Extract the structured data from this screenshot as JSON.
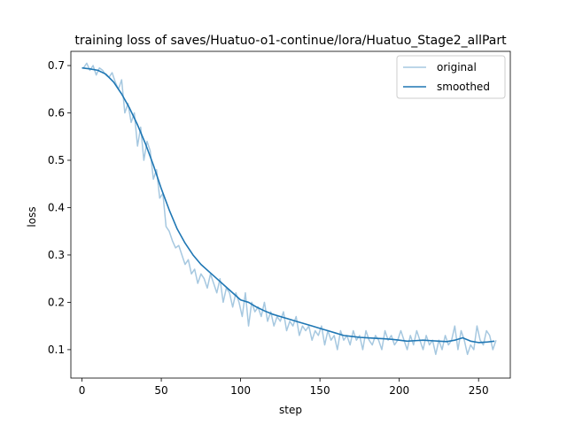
{
  "chart_data": {
    "type": "line",
    "title": "training loss of saves/Huatuo-o1-continue/lora/Huatuo_Stage2_allPart",
    "xlabel": "step",
    "ylabel": "loss",
    "xlim": [
      -7,
      270
    ],
    "ylim": [
      0.04,
      0.73
    ],
    "xticks": [
      0,
      50,
      100,
      150,
      200,
      250
    ],
    "yticks": [
      0.1,
      0.2,
      0.3,
      0.4,
      0.5,
      0.6,
      0.7
    ],
    "legend_position": "top-right",
    "series": [
      {
        "name": "original",
        "color": "#a6c8e0",
        "x": [
          1,
          3,
          5,
          7,
          9,
          11,
          13,
          15,
          17,
          19,
          21,
          23,
          25,
          27,
          29,
          31,
          33,
          35,
          37,
          39,
          41,
          43,
          45,
          47,
          49,
          51,
          53,
          55,
          57,
          59,
          61,
          63,
          65,
          67,
          69,
          71,
          73,
          75,
          77,
          79,
          81,
          83,
          85,
          87,
          89,
          91,
          93,
          95,
          97,
          99,
          101,
          103,
          105,
          107,
          109,
          111,
          113,
          115,
          117,
          119,
          121,
          123,
          125,
          127,
          129,
          131,
          133,
          135,
          137,
          139,
          141,
          143,
          145,
          147,
          149,
          151,
          153,
          155,
          157,
          159,
          161,
          163,
          165,
          167,
          169,
          171,
          173,
          175,
          177,
          179,
          181,
          183,
          185,
          187,
          189,
          191,
          193,
          195,
          197,
          199,
          201,
          203,
          205,
          207,
          209,
          211,
          213,
          215,
          217,
          219,
          221,
          223,
          225,
          227,
          229,
          231,
          233,
          235,
          237,
          239,
          241,
          243,
          245,
          247,
          249,
          251,
          253,
          255,
          257,
          259,
          261
        ],
        "y": [
          0.695,
          0.705,
          0.69,
          0.7,
          0.68,
          0.695,
          0.69,
          0.68,
          0.675,
          0.685,
          0.665,
          0.65,
          0.67,
          0.6,
          0.62,
          0.58,
          0.6,
          0.53,
          0.57,
          0.5,
          0.54,
          0.52,
          0.46,
          0.48,
          0.42,
          0.43,
          0.36,
          0.35,
          0.33,
          0.315,
          0.32,
          0.3,
          0.28,
          0.29,
          0.26,
          0.27,
          0.24,
          0.26,
          0.25,
          0.23,
          0.26,
          0.24,
          0.22,
          0.25,
          0.2,
          0.23,
          0.22,
          0.19,
          0.22,
          0.2,
          0.17,
          0.22,
          0.15,
          0.2,
          0.18,
          0.19,
          0.17,
          0.2,
          0.16,
          0.18,
          0.15,
          0.17,
          0.16,
          0.18,
          0.14,
          0.16,
          0.15,
          0.17,
          0.13,
          0.15,
          0.14,
          0.15,
          0.12,
          0.14,
          0.13,
          0.15,
          0.11,
          0.14,
          0.12,
          0.13,
          0.1,
          0.14,
          0.12,
          0.13,
          0.11,
          0.14,
          0.12,
          0.13,
          0.1,
          0.14,
          0.12,
          0.11,
          0.13,
          0.12,
          0.1,
          0.14,
          0.12,
          0.13,
          0.11,
          0.12,
          0.14,
          0.12,
          0.1,
          0.13,
          0.11,
          0.14,
          0.12,
          0.1,
          0.13,
          0.11,
          0.12,
          0.09,
          0.12,
          0.1,
          0.13,
          0.11,
          0.12,
          0.15,
          0.1,
          0.14,
          0.12,
          0.09,
          0.11,
          0.1,
          0.15,
          0.12,
          0.11,
          0.14,
          0.13,
          0.1,
          0.12
        ]
      },
      {
        "name": "smoothed",
        "color": "#1f77b4",
        "x": [
          0,
          5,
          10,
          15,
          20,
          25,
          30,
          35,
          40,
          45,
          50,
          55,
          60,
          65,
          70,
          75,
          80,
          85,
          90,
          95,
          100,
          105,
          110,
          115,
          120,
          125,
          130,
          135,
          140,
          145,
          150,
          155,
          160,
          165,
          170,
          175,
          180,
          185,
          190,
          195,
          200,
          205,
          210,
          215,
          220,
          225,
          230,
          235,
          240,
          245,
          250,
          255,
          260
        ],
        "y": [
          0.695,
          0.693,
          0.69,
          0.682,
          0.665,
          0.64,
          0.61,
          0.575,
          0.535,
          0.49,
          0.44,
          0.395,
          0.355,
          0.325,
          0.3,
          0.28,
          0.265,
          0.25,
          0.235,
          0.22,
          0.205,
          0.2,
          0.19,
          0.182,
          0.175,
          0.17,
          0.165,
          0.16,
          0.155,
          0.15,
          0.145,
          0.14,
          0.135,
          0.13,
          0.128,
          0.126,
          0.125,
          0.124,
          0.123,
          0.122,
          0.12,
          0.118,
          0.119,
          0.12,
          0.119,
          0.118,
          0.117,
          0.12,
          0.125,
          0.118,
          0.115,
          0.116,
          0.118
        ]
      }
    ]
  }
}
